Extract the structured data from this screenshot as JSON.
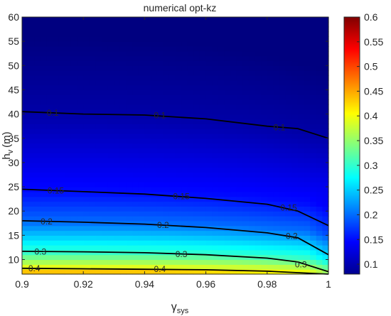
{
  "chart_data": {
    "type": "heatmap",
    "title": "numerical opt-kz",
    "xlabel": "γ",
    "xlabel_sub": "sys",
    "ylabel": "h",
    "ylabel_sub": "v",
    "ylabel_unit": "(m)",
    "xlim": [
      0.9,
      1.0
    ],
    "ylim": [
      7,
      60
    ],
    "xticks": [
      0.9,
      0.92,
      0.94,
      0.96,
      0.98,
      1
    ],
    "xtick_labels": [
      "0.9",
      "0.92",
      "0.94",
      "0.96",
      "0.98",
      "1"
    ],
    "yticks": [
      10,
      15,
      20,
      25,
      30,
      35,
      40,
      45,
      50,
      55,
      60
    ],
    "ytick_labels": [
      "10",
      "15",
      "20",
      "25",
      "30",
      "35",
      "40",
      "45",
      "50",
      "55",
      "60"
    ],
    "colormap": "jet",
    "clim": [
      0.08,
      0.6
    ],
    "colorbar_ticks": [
      0.1,
      0.15,
      0.2,
      0.25,
      0.3,
      0.35,
      0.4,
      0.45,
      0.5,
      0.55,
      0.6
    ],
    "colorbar_tick_labels": [
      "0.1",
      "0.15",
      "0.2",
      "0.25",
      "0.3",
      "0.35",
      "0.4",
      "0.45",
      "0.5",
      "0.55",
      "0.6"
    ],
    "grid": false,
    "contours": [
      {
        "level": "0.1",
        "points": [
          [
            0.9,
            40.5
          ],
          [
            0.92,
            40.0
          ],
          [
            0.94,
            39.8
          ],
          [
            0.96,
            39.0
          ],
          [
            0.98,
            37.5
          ],
          [
            0.99,
            37.0
          ],
          [
            1.0,
            35.0
          ]
        ],
        "labels": [
          {
            "x": 0.91,
            "y": 40.2
          },
          {
            "x": 0.945,
            "y": 39.7
          },
          {
            "x": 0.984,
            "y": 37.2
          }
        ]
      },
      {
        "level": "0.15",
        "points": [
          [
            0.9,
            24.5
          ],
          [
            0.92,
            24.0
          ],
          [
            0.94,
            23.5
          ],
          [
            0.96,
            22.6
          ],
          [
            0.98,
            21.4
          ],
          [
            0.99,
            20.0
          ],
          [
            1.0,
            17.0
          ]
        ],
        "labels": [
          {
            "x": 0.911,
            "y": 24.2
          },
          {
            "x": 0.952,
            "y": 23.0
          },
          {
            "x": 0.987,
            "y": 20.7
          }
        ]
      },
      {
        "level": "0.2",
        "points": [
          [
            0.9,
            18.0
          ],
          [
            0.92,
            17.7
          ],
          [
            0.94,
            17.3
          ],
          [
            0.96,
            16.6
          ],
          [
            0.98,
            15.5
          ],
          [
            0.99,
            14.5
          ],
          [
            1.0,
            11.0
          ]
        ],
        "labels": [
          {
            "x": 0.908,
            "y": 17.8
          },
          {
            "x": 0.946,
            "y": 17.1
          },
          {
            "x": 0.988,
            "y": 14.8
          }
        ]
      },
      {
        "level": "0.3",
        "points": [
          [
            0.9,
            11.7
          ],
          [
            0.92,
            11.6
          ],
          [
            0.94,
            11.4
          ],
          [
            0.96,
            11.0
          ],
          [
            0.98,
            10.3
          ],
          [
            0.99,
            9.5
          ],
          [
            1.0,
            7.5
          ]
        ],
        "labels": [
          {
            "x": 0.906,
            "y": 11.6
          },
          {
            "x": 0.952,
            "y": 11.1
          },
          {
            "x": 0.991,
            "y": 9.0
          }
        ]
      },
      {
        "level": "0.4",
        "points": [
          [
            0.9,
            8.2
          ],
          [
            0.92,
            8.1
          ],
          [
            0.94,
            8.0
          ],
          [
            0.96,
            7.9
          ],
          [
            0.98,
            7.6
          ],
          [
            0.99,
            7.3
          ],
          [
            1.0,
            7.0
          ]
        ],
        "labels": [
          {
            "x": 0.904,
            "y": 8.2
          },
          {
            "x": 0.945,
            "y": 8.0
          }
        ]
      }
    ]
  }
}
